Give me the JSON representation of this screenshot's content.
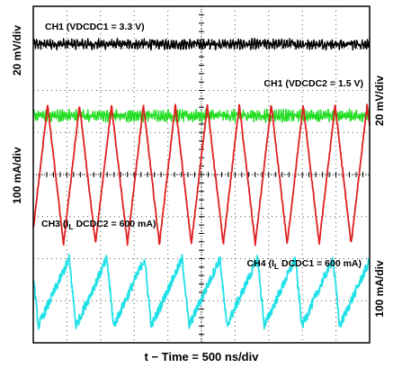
{
  "chart_data": {
    "type": "line",
    "title": "",
    "xlabel": "t − Time = 500 ns/div",
    "divisions": {
      "x": 10,
      "y": 8
    },
    "axis_labels": {
      "left_top": "20 mV/div",
      "left_bottom": "100 mA/div",
      "right_top": "20 mV/div",
      "right_bottom": "100 mA/div"
    },
    "traces": [
      {
        "id": "ch1a",
        "color": "#000000",
        "kind": "ripple",
        "label": {
          "pre": "CH1 (VDCDC1 = 3.3 V)",
          "sub": "",
          "post": ""
        },
        "center_div": 7.1,
        "amplitude_div": 0.12,
        "period_div": 0.08
      },
      {
        "id": "ch1b",
        "color": "#22dd22",
        "kind": "ripple",
        "label": {
          "pre": "CH1 (VDCDC2 = 1.5 V)",
          "sub": "",
          "post": ""
        },
        "center_div": 5.4,
        "amplitude_div": 0.14,
        "period_div": 0.07
      },
      {
        "id": "ch3",
        "color": "#e02020",
        "kind": "triangle",
        "label": {
          "pre": "CH3 (I",
          "sub": "L",
          "post": " DCDC2 = 600 mA)"
        },
        "center_div": 4.0,
        "amplitude_div": 1.65,
        "period_div": 0.95
      },
      {
        "id": "ch4",
        "color": "#22e0e8",
        "kind": "sawtooth",
        "label": {
          "pre": "CH4 (I",
          "sub": "L",
          "post": " DCDC1 = 600 mA)"
        },
        "center_div": 1.2,
        "amplitude_div": 0.8,
        "period_div": 1.12
      }
    ]
  }
}
